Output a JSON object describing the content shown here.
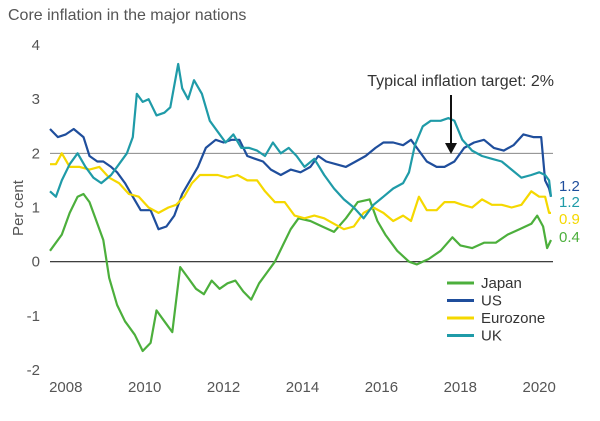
{
  "chart_data": {
    "type": "line",
    "title": "Core inflation in the major nations",
    "xlabel": "",
    "ylabel": "Per cent",
    "xlim": [
      2007.6,
      2020.35
    ],
    "ylim": [
      -2,
      4
    ],
    "x_ticks": [
      2008,
      2010,
      2012,
      2014,
      2016,
      2018,
      2020
    ],
    "y_ticks": [
      4,
      3,
      2,
      1,
      0,
      -1,
      -2
    ],
    "reference_lines": [
      2,
      0
    ],
    "grid": false,
    "legend_position": "bottom-right",
    "annotation": {
      "text": "Typical inflation target: 2%",
      "x": 2017.45,
      "y": 2.0
    },
    "series": [
      {
        "name": "Japan",
        "color": "#4caf3c",
        "end_label": "0.4",
        "points": [
          [
            2007.6,
            0.2
          ],
          [
            2007.9,
            0.5
          ],
          [
            2008.1,
            0.9
          ],
          [
            2008.3,
            1.2
          ],
          [
            2008.45,
            1.25
          ],
          [
            2008.6,
            1.1
          ],
          [
            2008.75,
            0.8
          ],
          [
            2008.95,
            0.4
          ],
          [
            2009.1,
            -0.3
          ],
          [
            2009.3,
            -0.8
          ],
          [
            2009.5,
            -1.1
          ],
          [
            2009.75,
            -1.35
          ],
          [
            2009.95,
            -1.65
          ],
          [
            2010.15,
            -1.5
          ],
          [
            2010.3,
            -0.9
          ],
          [
            2010.5,
            -1.1
          ],
          [
            2010.7,
            -1.3
          ],
          [
            2010.9,
            -0.1
          ],
          [
            2011.1,
            -0.3
          ],
          [
            2011.3,
            -0.5
          ],
          [
            2011.5,
            -0.6
          ],
          [
            2011.7,
            -0.35
          ],
          [
            2011.9,
            -0.5
          ],
          [
            2012.1,
            -0.4
          ],
          [
            2012.3,
            -0.35
          ],
          [
            2012.5,
            -0.55
          ],
          [
            2012.7,
            -0.7
          ],
          [
            2012.9,
            -0.4
          ],
          [
            2013.1,
            -0.2
          ],
          [
            2013.3,
            0.0
          ],
          [
            2013.5,
            0.3
          ],
          [
            2013.7,
            0.6
          ],
          [
            2013.9,
            0.8
          ],
          [
            2014.2,
            0.75
          ],
          [
            2014.5,
            0.65
          ],
          [
            2014.8,
            0.55
          ],
          [
            2015.1,
            0.8
          ],
          [
            2015.4,
            1.1
          ],
          [
            2015.7,
            1.15
          ],
          [
            2015.9,
            0.75
          ],
          [
            2016.1,
            0.5
          ],
          [
            2016.4,
            0.2
          ],
          [
            2016.7,
            0.0
          ],
          [
            2016.9,
            -0.05
          ],
          [
            2017.2,
            0.05
          ],
          [
            2017.5,
            0.2
          ],
          [
            2017.8,
            0.45
          ],
          [
            2018.0,
            0.3
          ],
          [
            2018.3,
            0.25
          ],
          [
            2018.6,
            0.35
          ],
          [
            2018.9,
            0.35
          ],
          [
            2019.2,
            0.5
          ],
          [
            2019.5,
            0.6
          ],
          [
            2019.8,
            0.7
          ],
          [
            2019.95,
            0.85
          ],
          [
            2020.1,
            0.65
          ],
          [
            2020.2,
            0.25
          ],
          [
            2020.3,
            0.4
          ]
        ]
      },
      {
        "name": "US",
        "color": "#1f4e9c",
        "end_label": "1.2",
        "points": [
          [
            2007.6,
            2.45
          ],
          [
            2007.8,
            2.3
          ],
          [
            2008.0,
            2.35
          ],
          [
            2008.2,
            2.45
          ],
          [
            2008.45,
            2.3
          ],
          [
            2008.6,
            1.95
          ],
          [
            2008.8,
            1.85
          ],
          [
            2008.95,
            1.85
          ],
          [
            2009.15,
            1.75
          ],
          [
            2009.3,
            1.65
          ],
          [
            2009.5,
            1.45
          ],
          [
            2009.7,
            1.2
          ],
          [
            2009.9,
            0.95
          ],
          [
            2010.15,
            0.95
          ],
          [
            2010.35,
            0.6
          ],
          [
            2010.55,
            0.65
          ],
          [
            2010.75,
            0.85
          ],
          [
            2010.95,
            1.25
          ],
          [
            2011.15,
            1.5
          ],
          [
            2011.35,
            1.75
          ],
          [
            2011.55,
            2.1
          ],
          [
            2011.8,
            2.25
          ],
          [
            2012.0,
            2.2
          ],
          [
            2012.2,
            2.25
          ],
          [
            2012.4,
            2.25
          ],
          [
            2012.6,
            1.95
          ],
          [
            2012.8,
            1.9
          ],
          [
            2013.0,
            1.85
          ],
          [
            2013.2,
            1.7
          ],
          [
            2013.45,
            1.6
          ],
          [
            2013.7,
            1.7
          ],
          [
            2013.95,
            1.65
          ],
          [
            2014.2,
            1.75
          ],
          [
            2014.4,
            1.95
          ],
          [
            2014.6,
            1.85
          ],
          [
            2014.85,
            1.8
          ],
          [
            2015.1,
            1.75
          ],
          [
            2015.35,
            1.85
          ],
          [
            2015.6,
            1.95
          ],
          [
            2015.85,
            2.1
          ],
          [
            2016.05,
            2.2
          ],
          [
            2016.3,
            2.2
          ],
          [
            2016.55,
            2.15
          ],
          [
            2016.75,
            2.25
          ],
          [
            2016.95,
            2.05
          ],
          [
            2017.15,
            1.85
          ],
          [
            2017.4,
            1.75
          ],
          [
            2017.6,
            1.75
          ],
          [
            2017.85,
            1.85
          ],
          [
            2018.1,
            2.1
          ],
          [
            2018.35,
            2.2
          ],
          [
            2018.6,
            2.25
          ],
          [
            2018.85,
            2.1
          ],
          [
            2019.1,
            2.05
          ],
          [
            2019.35,
            2.15
          ],
          [
            2019.6,
            2.35
          ],
          [
            2019.85,
            2.3
          ],
          [
            2020.05,
            2.3
          ],
          [
            2020.15,
            1.5
          ],
          [
            2020.25,
            1.35
          ],
          [
            2020.3,
            1.2
          ]
        ]
      },
      {
        "name": "Eurozone",
        "color": "#f5d800",
        "end_label": "0.9",
        "points": [
          [
            2007.6,
            1.8
          ],
          [
            2007.75,
            1.8
          ],
          [
            2007.9,
            2.0
          ],
          [
            2008.1,
            1.75
          ],
          [
            2008.35,
            1.75
          ],
          [
            2008.6,
            1.7
          ],
          [
            2008.85,
            1.75
          ],
          [
            2009.1,
            1.55
          ],
          [
            2009.35,
            1.45
          ],
          [
            2009.6,
            1.25
          ],
          [
            2009.85,
            1.2
          ],
          [
            2010.1,
            1.0
          ],
          [
            2010.35,
            0.9
          ],
          [
            2010.6,
            1.0
          ],
          [
            2010.8,
            1.05
          ],
          [
            2011.0,
            1.2
          ],
          [
            2011.2,
            1.45
          ],
          [
            2011.4,
            1.6
          ],
          [
            2011.6,
            1.6
          ],
          [
            2011.85,
            1.6
          ],
          [
            2012.1,
            1.55
          ],
          [
            2012.35,
            1.6
          ],
          [
            2012.6,
            1.5
          ],
          [
            2012.85,
            1.5
          ],
          [
            2013.05,
            1.3
          ],
          [
            2013.3,
            1.1
          ],
          [
            2013.55,
            1.1
          ],
          [
            2013.8,
            0.85
          ],
          [
            2014.05,
            0.8
          ],
          [
            2014.3,
            0.85
          ],
          [
            2014.55,
            0.8
          ],
          [
            2014.8,
            0.7
          ],
          [
            2015.05,
            0.6
          ],
          [
            2015.3,
            0.65
          ],
          [
            2015.55,
            0.9
          ],
          [
            2015.8,
            1.0
          ],
          [
            2016.05,
            0.9
          ],
          [
            2016.3,
            0.75
          ],
          [
            2016.55,
            0.85
          ],
          [
            2016.75,
            0.75
          ],
          [
            2016.95,
            1.2
          ],
          [
            2017.15,
            0.95
          ],
          [
            2017.4,
            0.95
          ],
          [
            2017.6,
            1.1
          ],
          [
            2017.85,
            1.1
          ],
          [
            2018.05,
            1.05
          ],
          [
            2018.3,
            1.0
          ],
          [
            2018.55,
            1.15
          ],
          [
            2018.8,
            1.05
          ],
          [
            2019.05,
            1.05
          ],
          [
            2019.3,
            1.0
          ],
          [
            2019.55,
            1.05
          ],
          [
            2019.8,
            1.3
          ],
          [
            2020.0,
            1.2
          ],
          [
            2020.15,
            1.2
          ],
          [
            2020.25,
            0.9
          ],
          [
            2020.3,
            0.9
          ]
        ]
      },
      {
        "name": "UK",
        "color": "#1f9ba8",
        "end_label": "1.2",
        "points": [
          [
            2007.6,
            1.3
          ],
          [
            2007.75,
            1.2
          ],
          [
            2007.9,
            1.5
          ],
          [
            2008.1,
            1.8
          ],
          [
            2008.3,
            2.0
          ],
          [
            2008.5,
            1.75
          ],
          [
            2008.7,
            1.55
          ],
          [
            2008.9,
            1.45
          ],
          [
            2009.15,
            1.6
          ],
          [
            2009.35,
            1.8
          ],
          [
            2009.55,
            2.0
          ],
          [
            2009.7,
            2.3
          ],
          [
            2009.8,
            3.1
          ],
          [
            2009.95,
            2.95
          ],
          [
            2010.1,
            3.0
          ],
          [
            2010.3,
            2.7
          ],
          [
            2010.5,
            2.75
          ],
          [
            2010.65,
            2.85
          ],
          [
            2010.85,
            3.65
          ],
          [
            2010.95,
            3.2
          ],
          [
            2011.1,
            3.0
          ],
          [
            2011.25,
            3.35
          ],
          [
            2011.45,
            3.1
          ],
          [
            2011.65,
            2.6
          ],
          [
            2011.85,
            2.4
          ],
          [
            2012.05,
            2.2
          ],
          [
            2012.25,
            2.35
          ],
          [
            2012.45,
            2.1
          ],
          [
            2012.65,
            2.1
          ],
          [
            2012.85,
            2.05
          ],
          [
            2013.05,
            1.95
          ],
          [
            2013.25,
            2.2
          ],
          [
            2013.45,
            2.0
          ],
          [
            2013.65,
            2.1
          ],
          [
            2013.85,
            1.95
          ],
          [
            2014.05,
            1.75
          ],
          [
            2014.3,
            1.9
          ],
          [
            2014.55,
            1.6
          ],
          [
            2014.8,
            1.35
          ],
          [
            2015.05,
            1.15
          ],
          [
            2015.3,
            1.0
          ],
          [
            2015.55,
            0.8
          ],
          [
            2015.8,
            1.05
          ],
          [
            2016.05,
            1.2
          ],
          [
            2016.3,
            1.35
          ],
          [
            2016.55,
            1.45
          ],
          [
            2016.7,
            1.65
          ],
          [
            2016.85,
            2.15
          ],
          [
            2017.05,
            2.5
          ],
          [
            2017.25,
            2.6
          ],
          [
            2017.5,
            2.6
          ],
          [
            2017.7,
            2.65
          ],
          [
            2017.85,
            2.6
          ],
          [
            2018.05,
            2.25
          ],
          [
            2018.3,
            2.05
          ],
          [
            2018.55,
            1.95
          ],
          [
            2018.8,
            1.9
          ],
          [
            2019.05,
            1.85
          ],
          [
            2019.3,
            1.7
          ],
          [
            2019.55,
            1.55
          ],
          [
            2019.8,
            1.6
          ],
          [
            2020.0,
            1.65
          ],
          [
            2020.15,
            1.6
          ],
          [
            2020.25,
            1.5
          ],
          [
            2020.3,
            1.2
          ]
        ]
      }
    ]
  }
}
